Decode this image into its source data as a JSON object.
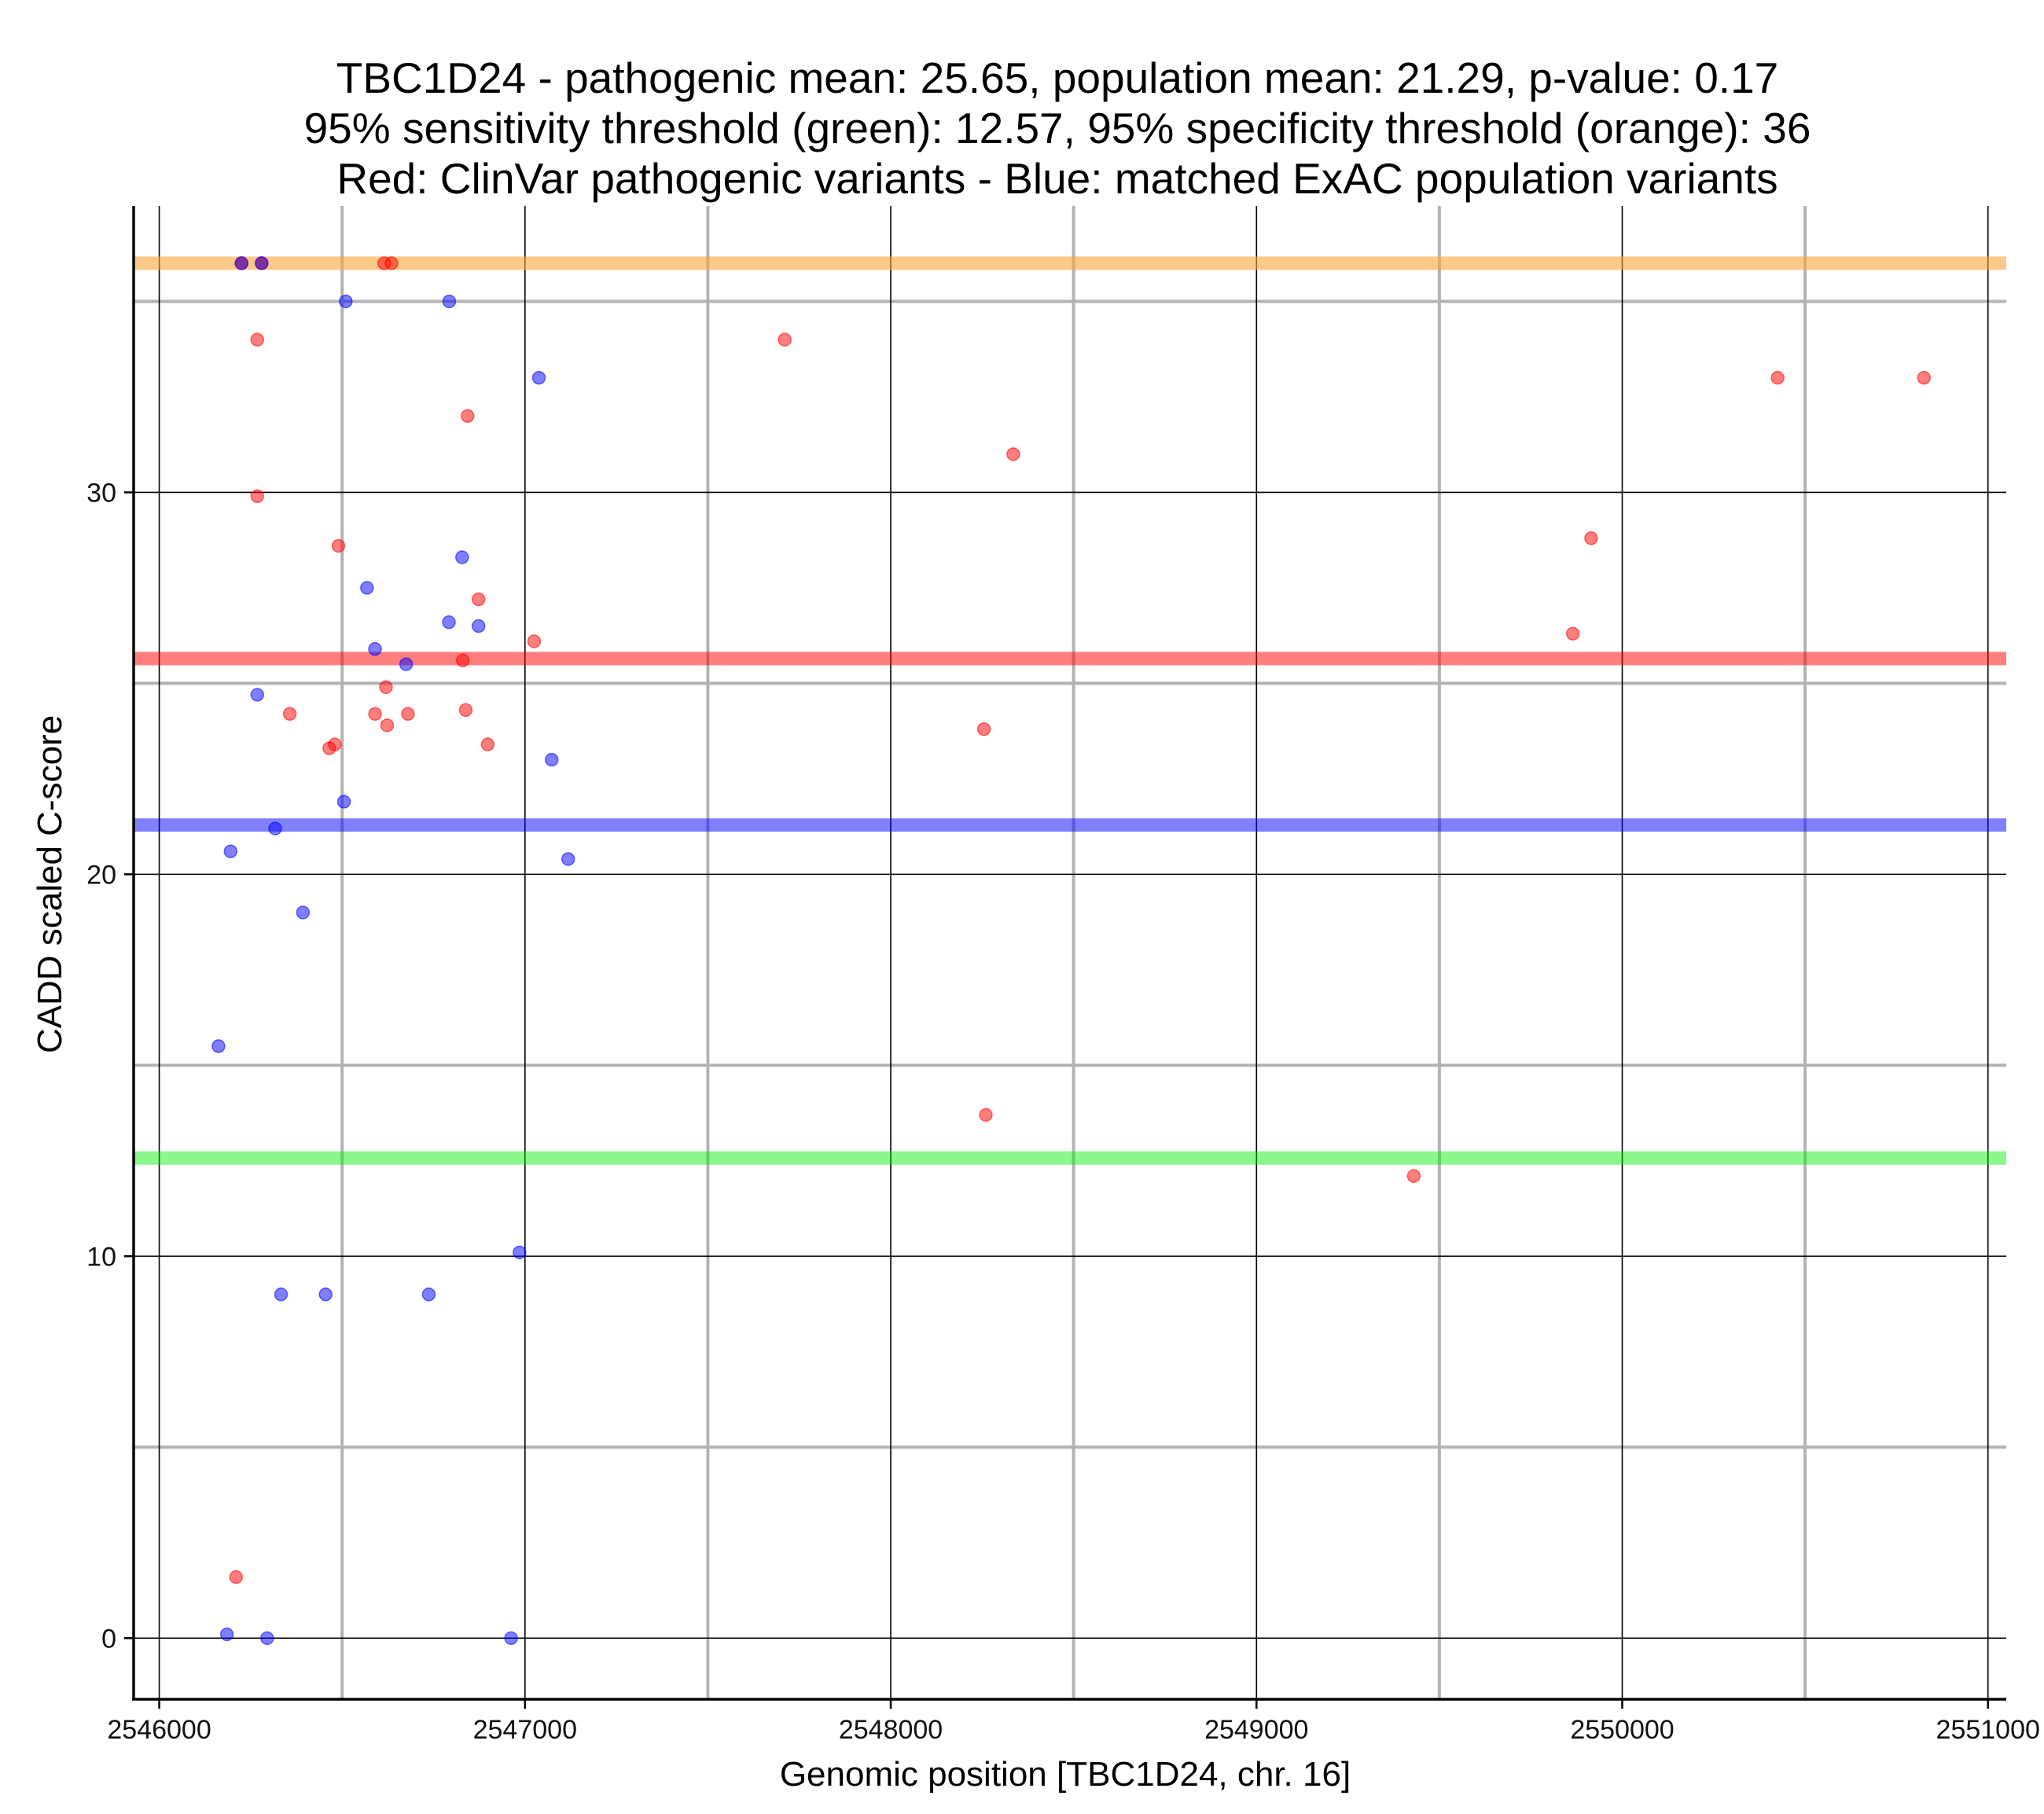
{
  "chart_data": {
    "type": "scatter",
    "title_lines": [
      "TBC1D24 - pathogenic mean: 25.65, population mean: 21.29, p-value: 0.17",
      "95% sensitivity threshold (green): 12.57, 95% specificity threshold (orange): 36",
      "Red: ClinVar pathogenic variants - Blue: matched ExAC population variants"
    ],
    "xlabel": "Genomic position [TBC1D24, chr. 16]",
    "ylabel": "CADD scaled C-score",
    "xlim": [
      2545930,
      2551050
    ],
    "ylim": [
      -1.6,
      37.5
    ],
    "x_ticks": [
      2546000,
      2547000,
      2548000,
      2549000,
      2550000,
      2551000
    ],
    "x_tick_labels": [
      "2546000",
      "2547000",
      "2548000",
      "2549000",
      "2550000",
      "2551000"
    ],
    "y_ticks": [
      0,
      10,
      20,
      30
    ],
    "y_tick_labels": [
      "0",
      "10",
      "20",
      "30"
    ],
    "x_minor_gridlines": [
      2546500,
      2547500,
      2548500,
      2549500,
      2550500
    ],
    "y_minor_gridlines": [
      5,
      15,
      25,
      35
    ],
    "reference_lines": [
      {
        "name": "specificity-threshold",
        "y": 36,
        "color": "#f9a53a",
        "opacity": 0.6
      },
      {
        "name": "pathogenic-mean",
        "y": 25.65,
        "color": "#ff0000",
        "opacity": 0.5
      },
      {
        "name": "population-mean",
        "y": 21.29,
        "color": "#0000ff",
        "opacity": 0.5
      },
      {
        "name": "sensitivity-threshold",
        "y": 12.57,
        "color": "#00ee00",
        "opacity": 0.45
      }
    ],
    "series": [
      {
        "name": "ClinVar pathogenic variants",
        "color": "#ff0000",
        "points": [
          {
            "x": 2546225,
            "y": 36
          },
          {
            "x": 2546280,
            "y": 36
          },
          {
            "x": 2546615,
            "y": 36
          },
          {
            "x": 2546635,
            "y": 36
          },
          {
            "x": 2546268,
            "y": 34
          },
          {
            "x": 2547710,
            "y": 34
          },
          {
            "x": 2550425,
            "y": 33
          },
          {
            "x": 2550825,
            "y": 33
          },
          {
            "x": 2546843,
            "y": 32
          },
          {
            "x": 2548335,
            "y": 31
          },
          {
            "x": 2546268,
            "y": 29.9
          },
          {
            "x": 2549915,
            "y": 28.8
          },
          {
            "x": 2546490,
            "y": 28.6
          },
          {
            "x": 2546873,
            "y": 27.2
          },
          {
            "x": 2547025,
            "y": 26.1
          },
          {
            "x": 2549865,
            "y": 26.3
          },
          {
            "x": 2546830,
            "y": 25.6
          },
          {
            "x": 2546620,
            "y": 24.9
          },
          {
            "x": 2546357,
            "y": 24.2
          },
          {
            "x": 2546590,
            "y": 24.2
          },
          {
            "x": 2546680,
            "y": 24.2
          },
          {
            "x": 2546838,
            "y": 24.3
          },
          {
            "x": 2546623,
            "y": 23.9
          },
          {
            "x": 2548255,
            "y": 23.8
          },
          {
            "x": 2546465,
            "y": 23.3
          },
          {
            "x": 2546480,
            "y": 23.4
          },
          {
            "x": 2546898,
            "y": 23.4
          },
          {
            "x": 2548260,
            "y": 13.7
          },
          {
            "x": 2549430,
            "y": 12.1
          },
          {
            "x": 2546210,
            "y": 1.6
          }
        ]
      },
      {
        "name": "matched ExAC population variants",
        "color": "#0000ff",
        "points": [
          {
            "x": 2546225,
            "y": 36
          },
          {
            "x": 2546280,
            "y": 36
          },
          {
            "x": 2546510,
            "y": 35
          },
          {
            "x": 2546793,
            "y": 35
          },
          {
            "x": 2547038,
            "y": 33
          },
          {
            "x": 2546828,
            "y": 28.3
          },
          {
            "x": 2546568,
            "y": 27.5
          },
          {
            "x": 2546792,
            "y": 26.6
          },
          {
            "x": 2546873,
            "y": 26.5
          },
          {
            "x": 2546590,
            "y": 25.9
          },
          {
            "x": 2546675,
            "y": 25.5
          },
          {
            "x": 2546268,
            "y": 24.7
          },
          {
            "x": 2547073,
            "y": 23.0
          },
          {
            "x": 2546505,
            "y": 21.9
          },
          {
            "x": 2546317,
            "y": 21.2
          },
          {
            "x": 2546195,
            "y": 20.6
          },
          {
            "x": 2547118,
            "y": 20.4
          },
          {
            "x": 2546393,
            "y": 19.0
          },
          {
            "x": 2546162,
            "y": 15.5
          },
          {
            "x": 2546985,
            "y": 10.1
          },
          {
            "x": 2546333,
            "y": 9.0
          },
          {
            "x": 2546455,
            "y": 9.0
          },
          {
            "x": 2546737,
            "y": 9.0
          },
          {
            "x": 2546185,
            "y": 0.1
          },
          {
            "x": 2546295,
            "y": 0
          },
          {
            "x": 2546962,
            "y": 0
          }
        ]
      }
    ]
  }
}
